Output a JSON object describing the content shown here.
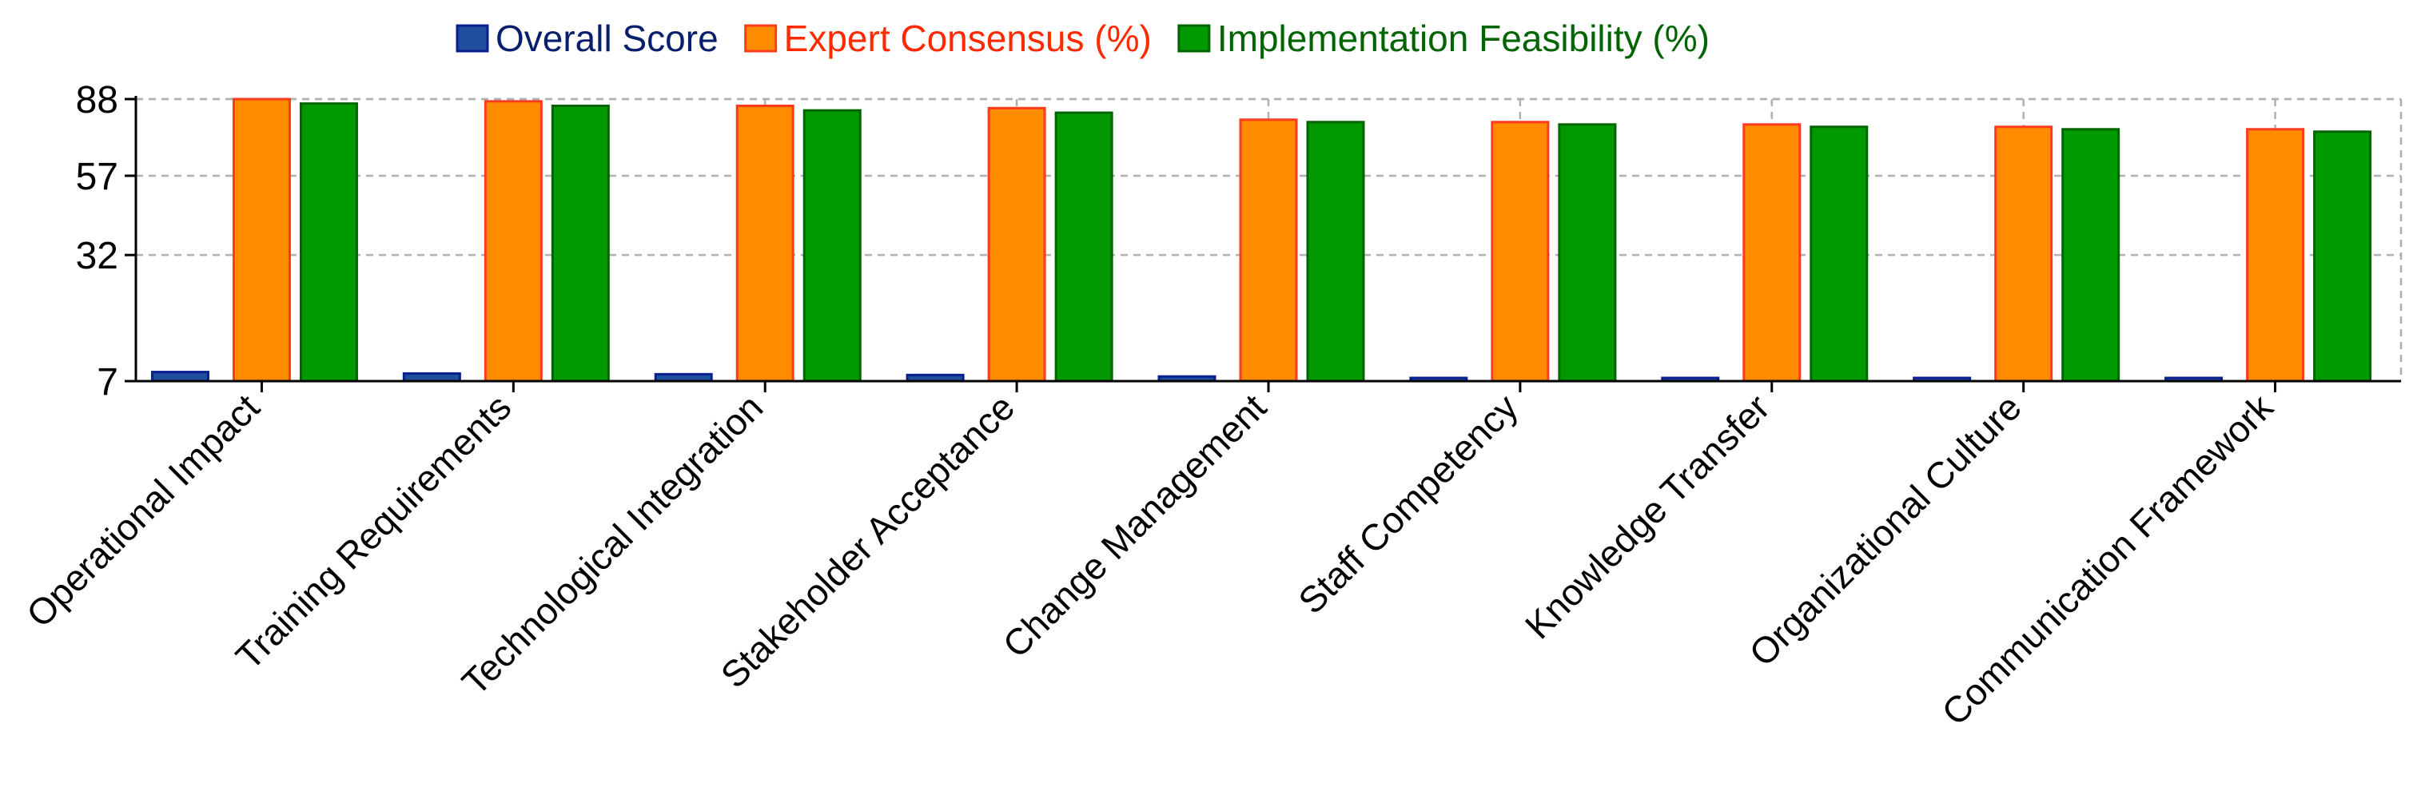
{
  "chart_data": {
    "type": "bar",
    "title": "",
    "xlabel": "",
    "ylabel": "",
    "yscale": "sqrt",
    "ylim": [
      7,
      88
    ],
    "yticks": [
      7,
      32,
      57,
      88
    ],
    "grid": true,
    "legend_position": "top-center",
    "categories": [
      "Operational Impact",
      "Training Requirements",
      "Technological Integration",
      "Stakeholder Acceptance",
      "Change Management",
      "Staff Competency",
      "Knowledge Transfer",
      "Organizational Culture",
      "Communication Framework"
    ],
    "series": [
      {
        "name": "Overall Score",
        "fill": "#1f4e9c",
        "stroke": "#0a1f8f",
        "legend_color": "#0a1f6b",
        "values": [
          8.2,
          8.0,
          7.9,
          7.8,
          7.6,
          7.4,
          7.3,
          7.2,
          7.1
        ]
      },
      {
        "name": "Expert Consensus (%)",
        "fill": "#ff8c00",
        "stroke": "#ff3b1f",
        "legend_color": "#ff2a00",
        "values": [
          88,
          87,
          85,
          84,
          79,
          78,
          77,
          76,
          75
        ]
      },
      {
        "name": "Implementation Feasibility (%)",
        "fill": "#009900",
        "stroke": "#006400",
        "legend_color": "#006400",
        "values": [
          86,
          85,
          83,
          82,
          78,
          77,
          76,
          75,
          74
        ]
      }
    ]
  }
}
